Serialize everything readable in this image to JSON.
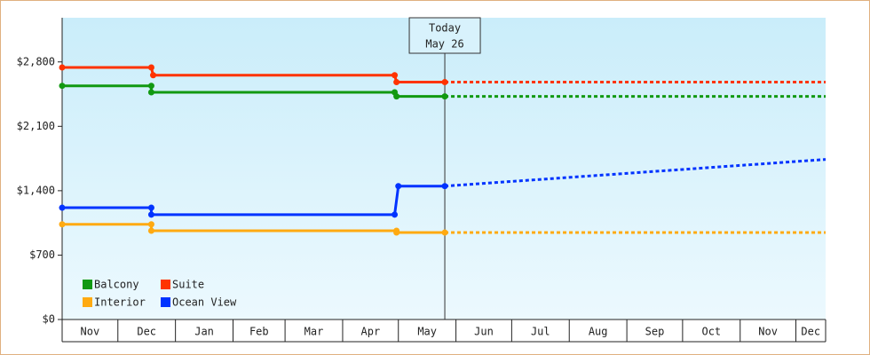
{
  "chart_data": {
    "type": "line",
    "xlim": [
      0,
      411
    ],
    "ylim": [
      0,
      3280
    ],
    "xticks": [
      {
        "value": 0,
        "label": "Nov"
      },
      {
        "value": 30,
        "label": "Dec"
      },
      {
        "value": 61,
        "label": "Jan"
      },
      {
        "value": 92,
        "label": "Feb"
      },
      {
        "value": 120,
        "label": "Mar"
      },
      {
        "value": 151,
        "label": "Apr"
      },
      {
        "value": 181,
        "label": "May"
      },
      {
        "value": 212,
        "label": "Jun"
      },
      {
        "value": 242,
        "label": "Jul"
      },
      {
        "value": 273,
        "label": "Aug"
      },
      {
        "value": 304,
        "label": "Sep"
      },
      {
        "value": 334,
        "label": "Oct"
      },
      {
        "value": 365,
        "label": "Nov"
      },
      {
        "value": 395,
        "label": "Dec"
      }
    ],
    "yticks": [
      {
        "value": 0,
        "label": "$0"
      },
      {
        "value": 700,
        "label": "$700"
      },
      {
        "value": 1400,
        "label": "$1,400"
      },
      {
        "value": 2100,
        "label": "$2,100"
      },
      {
        "value": 2800,
        "label": "$2,800"
      }
    ],
    "today": {
      "x": 206,
      "label": "Today",
      "date": "May 26"
    },
    "series": [
      {
        "name": "Balcony",
        "color": "#119911",
        "x": [
          0,
          48,
          48,
          179,
          180,
          206
        ],
        "values": [
          2540,
          2540,
          2470,
          2470,
          2425,
          2425
        ],
        "forecast": {
          "x": [
            206,
            411
          ],
          "values": [
            2425,
            2425
          ]
        }
      },
      {
        "name": "Suite",
        "color": "#ff3300",
        "x": [
          0,
          48,
          49,
          179,
          180,
          206
        ],
        "values": [
          2740,
          2740,
          2655,
          2655,
          2580,
          2580
        ],
        "forecast": {
          "x": [
            206,
            411
          ],
          "values": [
            2580,
            2580
          ]
        }
      },
      {
        "name": "Interior",
        "color": "#ffaa11",
        "x": [
          0,
          48,
          48,
          180,
          180,
          206
        ],
        "values": [
          1035,
          1035,
          965,
          965,
          945,
          945
        ],
        "forecast": {
          "x": [
            206,
            411
          ],
          "values": [
            945,
            945
          ]
        }
      },
      {
        "name": "Ocean View",
        "color": "#0033ff",
        "x": [
          0,
          48,
          48,
          179,
          181,
          206
        ],
        "values": [
          1215,
          1215,
          1140,
          1140,
          1450,
          1450
        ],
        "forecast": {
          "x": [
            206,
            411
          ],
          "values": [
            1450,
            1740
          ]
        }
      }
    ]
  }
}
